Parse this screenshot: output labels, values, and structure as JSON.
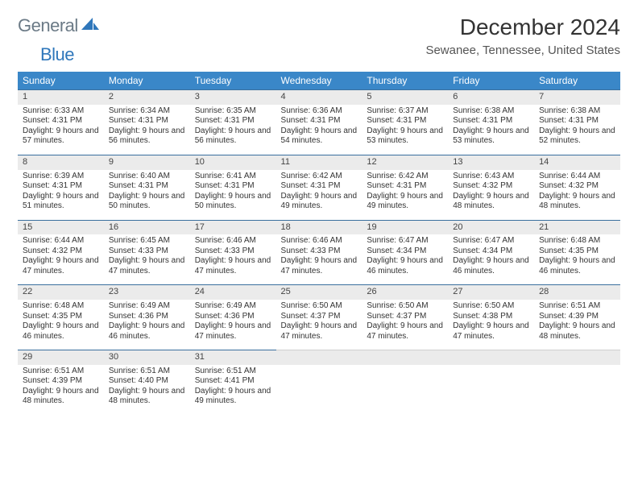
{
  "logo": {
    "part1": "General",
    "part2": "Blue"
  },
  "title": "December 2024",
  "location": "Sewanee, Tennessee, United States",
  "colors": {
    "header_bg": "#3a87c8",
    "header_text": "#ffffff",
    "daynum_bg": "#ebebeb",
    "row_border": "#3a6f9e",
    "logo_gray": "#6b7a86",
    "logo_blue": "#2f77bb"
  },
  "weekdays": [
    "Sunday",
    "Monday",
    "Tuesday",
    "Wednesday",
    "Thursday",
    "Friday",
    "Saturday"
  ],
  "weeks": [
    [
      {
        "n": "1",
        "sr": "6:33 AM",
        "ss": "4:31 PM",
        "dl": "9 hours and 57 minutes."
      },
      {
        "n": "2",
        "sr": "6:34 AM",
        "ss": "4:31 PM",
        "dl": "9 hours and 56 minutes."
      },
      {
        "n": "3",
        "sr": "6:35 AM",
        "ss": "4:31 PM",
        "dl": "9 hours and 56 minutes."
      },
      {
        "n": "4",
        "sr": "6:36 AM",
        "ss": "4:31 PM",
        "dl": "9 hours and 54 minutes."
      },
      {
        "n": "5",
        "sr": "6:37 AM",
        "ss": "4:31 PM",
        "dl": "9 hours and 53 minutes."
      },
      {
        "n": "6",
        "sr": "6:38 AM",
        "ss": "4:31 PM",
        "dl": "9 hours and 53 minutes."
      },
      {
        "n": "7",
        "sr": "6:38 AM",
        "ss": "4:31 PM",
        "dl": "9 hours and 52 minutes."
      }
    ],
    [
      {
        "n": "8",
        "sr": "6:39 AM",
        "ss": "4:31 PM",
        "dl": "9 hours and 51 minutes."
      },
      {
        "n": "9",
        "sr": "6:40 AM",
        "ss": "4:31 PM",
        "dl": "9 hours and 50 minutes."
      },
      {
        "n": "10",
        "sr": "6:41 AM",
        "ss": "4:31 PM",
        "dl": "9 hours and 50 minutes."
      },
      {
        "n": "11",
        "sr": "6:42 AM",
        "ss": "4:31 PM",
        "dl": "9 hours and 49 minutes."
      },
      {
        "n": "12",
        "sr": "6:42 AM",
        "ss": "4:31 PM",
        "dl": "9 hours and 49 minutes."
      },
      {
        "n": "13",
        "sr": "6:43 AM",
        "ss": "4:32 PM",
        "dl": "9 hours and 48 minutes."
      },
      {
        "n": "14",
        "sr": "6:44 AM",
        "ss": "4:32 PM",
        "dl": "9 hours and 48 minutes."
      }
    ],
    [
      {
        "n": "15",
        "sr": "6:44 AM",
        "ss": "4:32 PM",
        "dl": "9 hours and 47 minutes."
      },
      {
        "n": "16",
        "sr": "6:45 AM",
        "ss": "4:33 PM",
        "dl": "9 hours and 47 minutes."
      },
      {
        "n": "17",
        "sr": "6:46 AM",
        "ss": "4:33 PM",
        "dl": "9 hours and 47 minutes."
      },
      {
        "n": "18",
        "sr": "6:46 AM",
        "ss": "4:33 PM",
        "dl": "9 hours and 47 minutes."
      },
      {
        "n": "19",
        "sr": "6:47 AM",
        "ss": "4:34 PM",
        "dl": "9 hours and 46 minutes."
      },
      {
        "n": "20",
        "sr": "6:47 AM",
        "ss": "4:34 PM",
        "dl": "9 hours and 46 minutes."
      },
      {
        "n": "21",
        "sr": "6:48 AM",
        "ss": "4:35 PM",
        "dl": "9 hours and 46 minutes."
      }
    ],
    [
      {
        "n": "22",
        "sr": "6:48 AM",
        "ss": "4:35 PM",
        "dl": "9 hours and 46 minutes."
      },
      {
        "n": "23",
        "sr": "6:49 AM",
        "ss": "4:36 PM",
        "dl": "9 hours and 46 minutes."
      },
      {
        "n": "24",
        "sr": "6:49 AM",
        "ss": "4:36 PM",
        "dl": "9 hours and 47 minutes."
      },
      {
        "n": "25",
        "sr": "6:50 AM",
        "ss": "4:37 PM",
        "dl": "9 hours and 47 minutes."
      },
      {
        "n": "26",
        "sr": "6:50 AM",
        "ss": "4:37 PM",
        "dl": "9 hours and 47 minutes."
      },
      {
        "n": "27",
        "sr": "6:50 AM",
        "ss": "4:38 PM",
        "dl": "9 hours and 47 minutes."
      },
      {
        "n": "28",
        "sr": "6:51 AM",
        "ss": "4:39 PM",
        "dl": "9 hours and 48 minutes."
      }
    ],
    [
      {
        "n": "29",
        "sr": "6:51 AM",
        "ss": "4:39 PM",
        "dl": "9 hours and 48 minutes."
      },
      {
        "n": "30",
        "sr": "6:51 AM",
        "ss": "4:40 PM",
        "dl": "9 hours and 48 minutes."
      },
      {
        "n": "31",
        "sr": "6:51 AM",
        "ss": "4:41 PM",
        "dl": "9 hours and 49 minutes."
      },
      null,
      null,
      null,
      null
    ]
  ],
  "labels": {
    "sunrise": "Sunrise:",
    "sunset": "Sunset:",
    "daylight": "Daylight:"
  }
}
